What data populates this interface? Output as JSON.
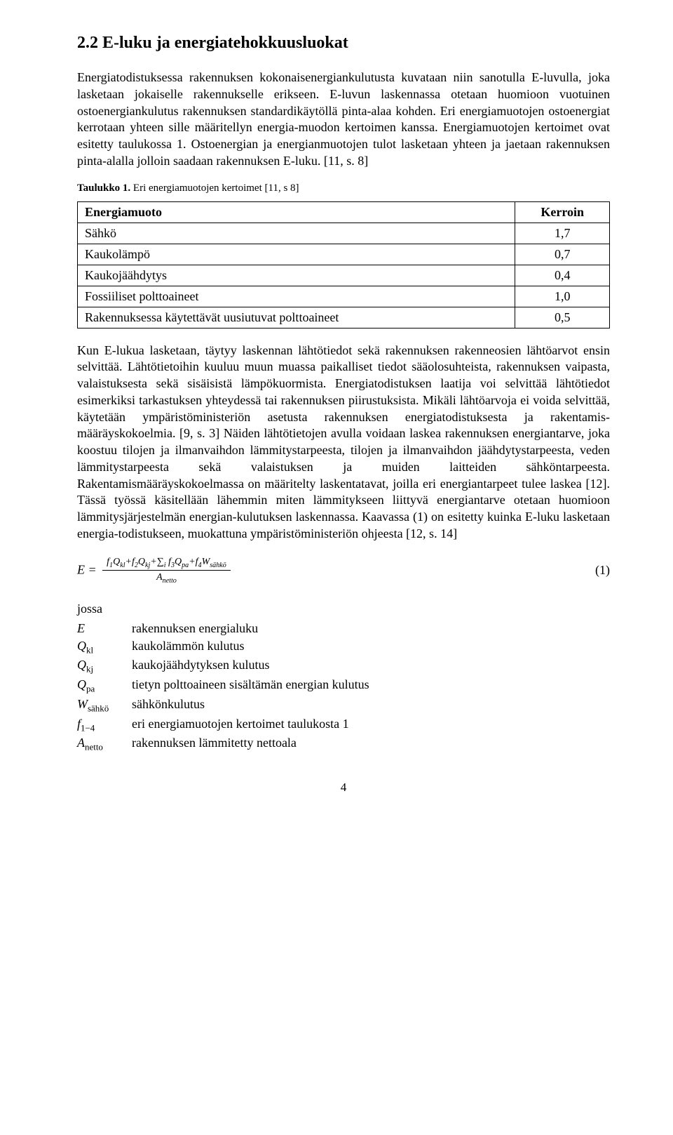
{
  "heading": "2.2 E-luku ja energiatehokkuusluokat",
  "para1": "Energiatodistuksessa rakennuksen kokonaisenergiankulutusta kuvataan niin sanotulla E-luvulla, joka lasketaan jokaiselle rakennukselle erikseen. E-luvun laskennassa otetaan huomioon vuotuinen ostoenergiankulutus rakennuksen standardikäytöllä pinta-alaa kohden. Eri energiamuotojen ostoenergiat kerrotaan yhteen sille määritellyn energia-muodon kertoimen kanssa. Energiamuotojen kertoimet ovat esitetty taulukossa 1. Ostoenergian ja energianmuotojen tulot lasketaan yhteen ja jaetaan rakennuksen pinta-alalla jolloin saadaan rakennuksen E-luku. [11, s. 8]",
  "tableCaptionBold": "Taulukko 1.",
  "tableCaptionRest": " Eri energiamuotojen kertoimet [11, s 8]",
  "table": {
    "headers": [
      "Energiamuoto",
      "Kerroin"
    ],
    "rows": [
      [
        "Sähkö",
        "1,7"
      ],
      [
        "Kaukolämpö",
        "0,7"
      ],
      [
        "Kaukojäähdytys",
        "0,4"
      ],
      [
        "Fossiiliset polttoaineet",
        "1,0"
      ],
      [
        "Rakennuksessa käytettävät uusiutuvat polttoaineet",
        "0,5"
      ]
    ],
    "col1_width": "80%",
    "col2_width": "20%",
    "border_color": "#000000",
    "fontsize": 18
  },
  "para2": "Kun E-lukua lasketaan, täytyy laskennan lähtötiedot sekä rakennuksen rakenneosien lähtöarvot ensin selvittää. Lähtötietoihin kuuluu muun muassa paikalliset tiedot sääolosuhteista, rakennuksen vaipasta, valaistuksesta sekä sisäisistä lämpökuormista. Energiatodistuksen laatija voi selvittää lähtötiedot esimerkiksi tarkastuksen yhteydessä tai rakennuksen piirustuksista.  Mikäli lähtöarvoja ei voida selvittää, käytetään ympäristöministeriön asetusta rakennuksen energiatodistuksesta ja rakentamis-määräyskokoelmia. [9, s. 3] Näiden lähtötietojen avulla voidaan laskea rakennuksen energiantarve, joka koostuu tilojen ja ilmanvaihdon lämmitystarpeesta, tilojen ja ilmanvaihdon jäähdytystarpeesta, veden lämmitystarpeesta sekä valaistuksen ja muiden laitteiden sähköntarpeesta. Rakentamismääräyskokoelmassa on määritelty laskentatavat, joilla eri energiantarpeet tulee laskea [12]. Tässä työssä käsitellään lähemmin miten lämmitykseen liittyvä energiantarve otetaan huomioon lämmitysjärjestelmän energian-kulutuksen laskennassa. Kaavassa (1) on esitetty kuinka E-luku lasketaan energia-todistukseen, muokattuna ympäristöministeriön ohjeesta [12, s. 14]",
  "formula": {
    "lhs": "E =",
    "numerator": "f₁Q_{kl}+f₂Q_{kj}+∑ᵢ f₃Q_{pa}+f₄W_{sähkö}",
    "denominator": "A_{netto}",
    "eqno": "(1)"
  },
  "whereWord": "jossa",
  "whereList": [
    {
      "sym": "E",
      "desc": "rakennuksen energialuku"
    },
    {
      "sym": "Q<sub>kl</sub>",
      "desc": "kaukolämmön kulutus"
    },
    {
      "sym": "Q<sub>kj</sub>",
      "desc": "kaukojäähdytyksen kulutus"
    },
    {
      "sym": "Q<sub>pa</sub>",
      "desc": "tietyn polttoaineen sisältämän energian kulutus"
    },
    {
      "sym": "W<sub>sähkö</sub>",
      "desc": "sähkönkulutus"
    },
    {
      "sym": "f<sub>1−4</sub>",
      "desc": "eri energiamuotojen kertoimet taulukosta 1"
    },
    {
      "sym": "A<sub>netto</sub>",
      "desc": "rakennuksen lämmitetty nettoala"
    }
  ],
  "pageNumber": "4",
  "colors": {
    "text": "#000000",
    "background": "#ffffff",
    "border": "#000000"
  },
  "typography": {
    "body_fontsize": 18,
    "heading_fontsize": 24,
    "caption_fontsize": 15,
    "font_family": "Times New Roman"
  }
}
